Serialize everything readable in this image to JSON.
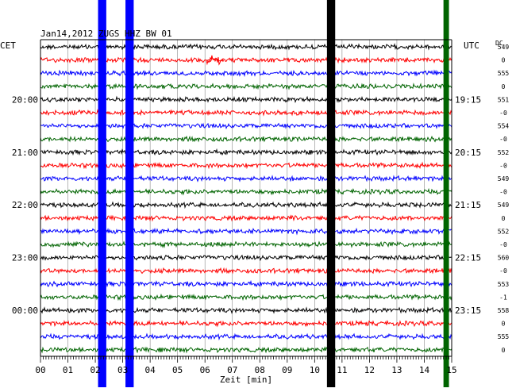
{
  "chart_data": {
    "type": "line",
    "title": "Jan14,2012   ZUGS HHZ BW 01",
    "left_axis_label": "CET",
    "right_axis_label": "UTC",
    "dc_label": "DC",
    "xlabel": "Zeit [min]",
    "xlim": [
      0,
      15
    ],
    "x_ticks": [
      "00",
      "01",
      "02",
      "03",
      "04",
      "05",
      "06",
      "07",
      "08",
      "09",
      "10",
      "11",
      "12",
      "13",
      "14",
      "15"
    ],
    "left_time_labels": [
      {
        "row": 4,
        "text": "20:00"
      },
      {
        "row": 8,
        "text": "21:00"
      },
      {
        "row": 12,
        "text": "22:00"
      },
      {
        "row": 16,
        "text": "23:00"
      },
      {
        "row": 20,
        "text": "00:00"
      }
    ],
    "right_time_labels": [
      {
        "row": 4,
        "text": "19:15"
      },
      {
        "row": 8,
        "text": "20:15"
      },
      {
        "row": 12,
        "text": "21:15"
      },
      {
        "row": 16,
        "text": "22:15"
      },
      {
        "row": 20,
        "text": "23:15"
      }
    ],
    "trace_colors": [
      "#000000",
      "#ff0000",
      "#0000ff",
      "#006400"
    ],
    "dc_values": [
      "549",
      "0",
      "555",
      "0",
      "551",
      "-0",
      "554",
      "-0",
      "552",
      "-0",
      "549",
      "-0",
      "549",
      "0",
      "552",
      "-0",
      "560",
      "-0",
      "553",
      "-1",
      "558",
      "0",
      "555",
      "0"
    ],
    "events": [
      {
        "x_start": 2.1,
        "x_end": 2.4,
        "color": "#0000ff"
      },
      {
        "x_start": 3.1,
        "x_end": 3.4,
        "color": "#0000ff"
      },
      {
        "x_start": 10.45,
        "x_end": 10.75,
        "color": "#000000"
      },
      {
        "x_start": 14.7,
        "x_end": 14.9,
        "color": "#006400"
      }
    ],
    "grid": true
  }
}
